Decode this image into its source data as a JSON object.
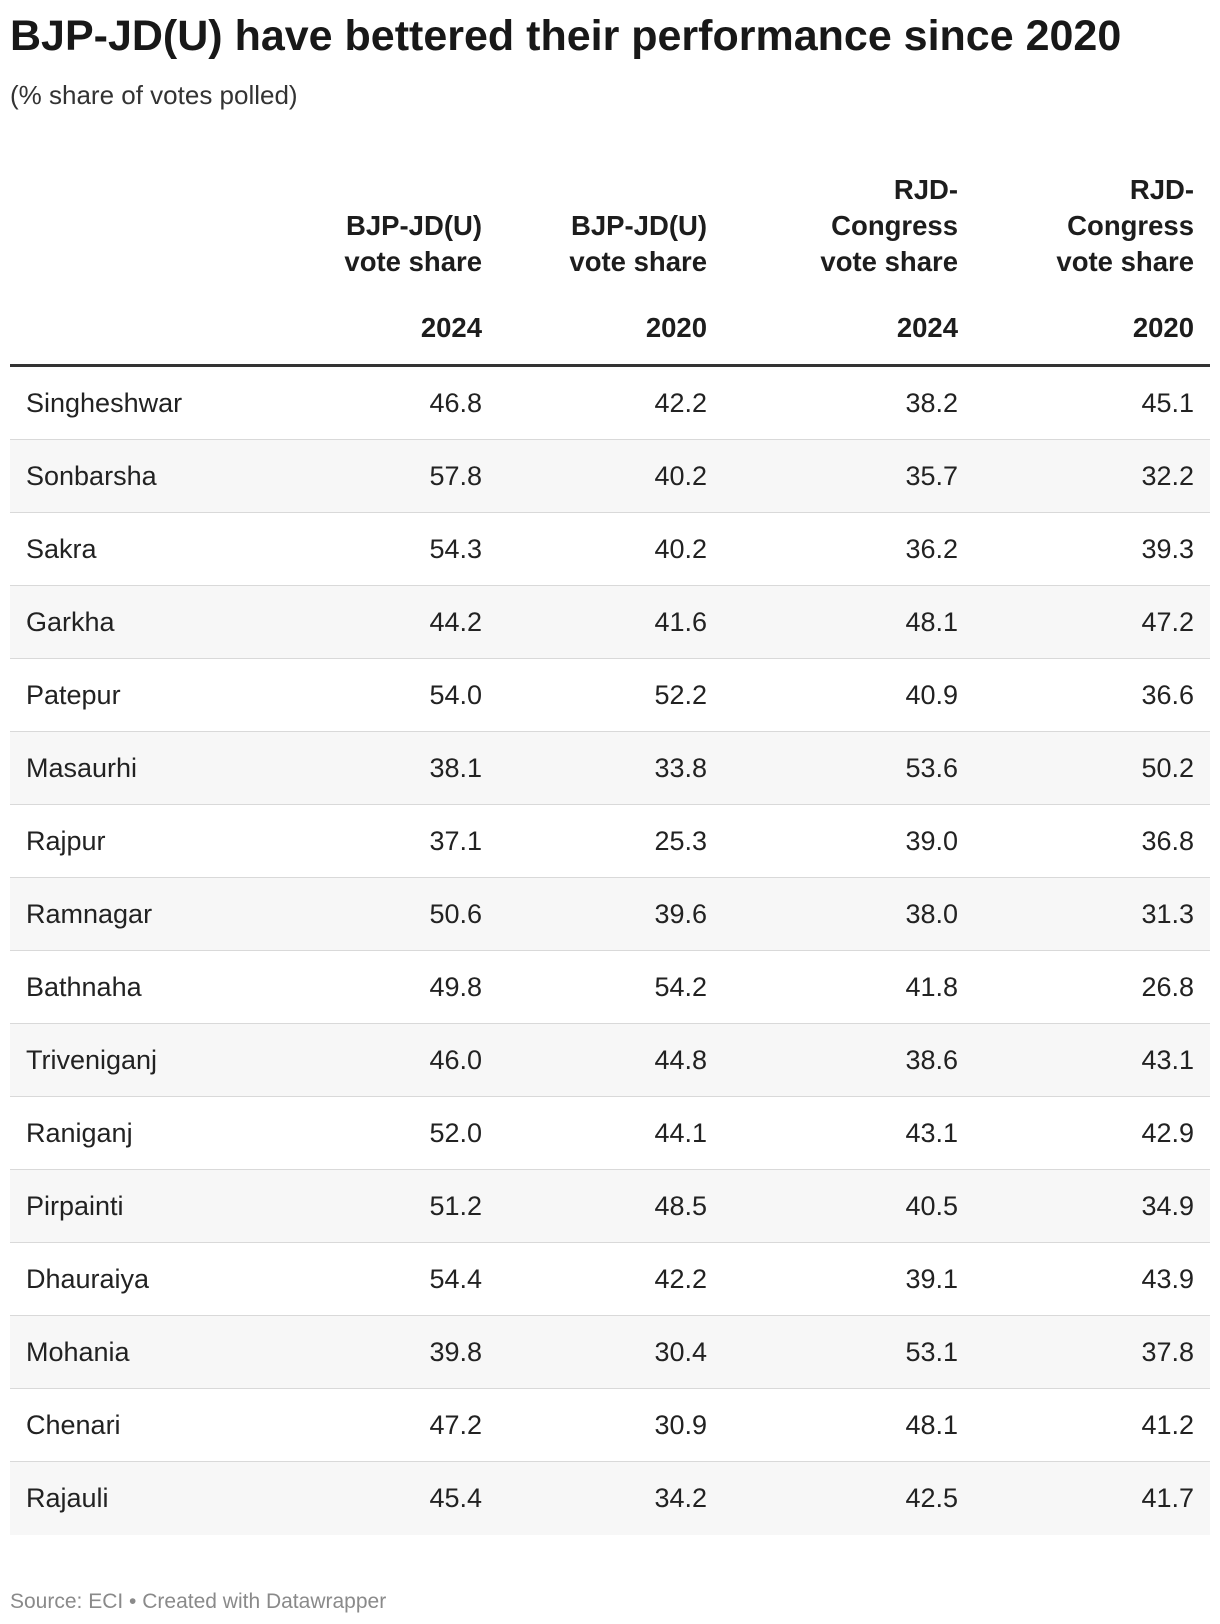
{
  "title": "BJP-JD(U) have bettered their performance since 2020",
  "subtitle": "(% share of votes polled)",
  "columns": [
    {
      "label": "BJP-JD(U)\nvote share",
      "year": "2024"
    },
    {
      "label": "BJP-JD(U)\nvote share",
      "year": "2020"
    },
    {
      "label": "RJD-\nCongress\nvote share",
      "year": "2024"
    },
    {
      "label": "RJD-\nCongress\nvote share",
      "year": "2020"
    }
  ],
  "chart_data": {
    "type": "table",
    "title": "BJP-JD(U) have bettered their performance since 2020",
    "subtitle": "(% share of votes polled)",
    "columns": [
      "BJP-JD(U) vote share 2024",
      "BJP-JD(U) vote share 2020",
      "RJD-Congress vote share 2024",
      "RJD-Congress vote share 2020"
    ],
    "rows": [
      {
        "name": "Singheshwar",
        "values": [
          "46.8",
          "42.2",
          "38.2",
          "45.1"
        ]
      },
      {
        "name": "Sonbarsha",
        "values": [
          "57.8",
          "40.2",
          "35.7",
          "32.2"
        ]
      },
      {
        "name": "Sakra",
        "values": [
          "54.3",
          "40.2",
          "36.2",
          "39.3"
        ]
      },
      {
        "name": "Garkha",
        "values": [
          "44.2",
          "41.6",
          "48.1",
          "47.2"
        ]
      },
      {
        "name": "Patepur",
        "values": [
          "54.0",
          "52.2",
          "40.9",
          "36.6"
        ]
      },
      {
        "name": "Masaurhi",
        "values": [
          "38.1",
          "33.8",
          "53.6",
          "50.2"
        ]
      },
      {
        "name": "Rajpur",
        "values": [
          "37.1",
          "25.3",
          "39.0",
          "36.8"
        ]
      },
      {
        "name": "Ramnagar",
        "values": [
          "50.6",
          "39.6",
          "38.0",
          "31.3"
        ]
      },
      {
        "name": "Bathnaha",
        "values": [
          "49.8",
          "54.2",
          "41.8",
          "26.8"
        ]
      },
      {
        "name": "Triveniganj",
        "values": [
          "46.0",
          "44.8",
          "38.6",
          "43.1"
        ]
      },
      {
        "name": "Raniganj",
        "values": [
          "52.0",
          "44.1",
          "43.1",
          "42.9"
        ]
      },
      {
        "name": "Pirpainti",
        "values": [
          "51.2",
          "48.5",
          "40.5",
          "34.9"
        ]
      },
      {
        "name": "Dhauraiya",
        "values": [
          "54.4",
          "42.2",
          "39.1",
          "43.9"
        ]
      },
      {
        "name": "Mohania",
        "values": [
          "39.8",
          "30.4",
          "53.1",
          "37.8"
        ]
      },
      {
        "name": "Chenari",
        "values": [
          "47.2",
          "30.9",
          "48.1",
          "41.2"
        ]
      },
      {
        "name": "Rajauli",
        "values": [
          "45.4",
          "34.2",
          "42.5",
          "41.7"
        ]
      }
    ]
  },
  "footer": "Source: ECI • Created with Datawrapper"
}
